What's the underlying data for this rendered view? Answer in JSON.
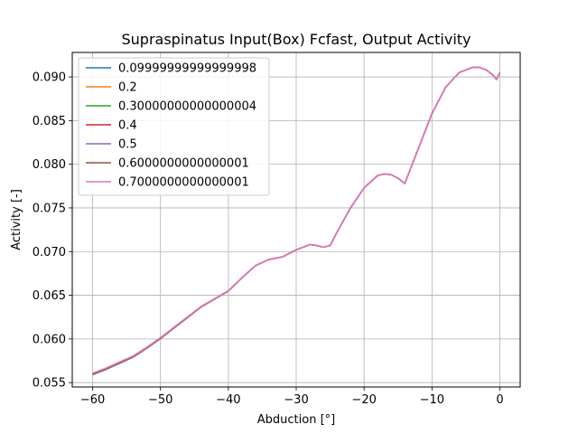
{
  "chart_data": {
    "type": "line",
    "title": "Supraspinatus Input(Box) Fcfast, Output Activity",
    "xlabel": "Abduction [°]",
    "ylabel": "Activity [-]",
    "xlim": [
      -63,
      3
    ],
    "ylim": [
      0.0545,
      0.0928
    ],
    "xticks": [
      -60,
      -50,
      -40,
      -30,
      -20,
      -10,
      0
    ],
    "xtick_labels": [
      "−60",
      "−50",
      "−40",
      "−30",
      "−20",
      "−10",
      "0"
    ],
    "yticks": [
      0.055,
      0.06,
      0.065,
      0.07,
      0.075,
      0.08,
      0.085,
      0.09
    ],
    "ytick_labels": [
      "0.055",
      "0.060",
      "0.065",
      "0.070",
      "0.075",
      "0.080",
      "0.085",
      "0.090"
    ],
    "grid": true,
    "legend_position": "top-left",
    "x": [
      -60,
      -58,
      -56,
      -54,
      -52,
      -50,
      -48,
      -46,
      -44,
      -42,
      -40,
      -38,
      -36,
      -34,
      -32,
      -30,
      -28,
      -27,
      -26,
      -25,
      -24,
      -22,
      -20,
      -18,
      -17,
      -16,
      -15,
      -14,
      -12,
      -10,
      -8,
      -6,
      -4,
      -3,
      -2,
      -1,
      -0.5,
      0
    ],
    "series": [
      {
        "name": "0.09999999999999998",
        "color": "#1f77b4",
        "offset": -0.0001
      },
      {
        "name": "0.2",
        "color": "#ff7f0e",
        "offset": -7e-05
      },
      {
        "name": "0.30000000000000004",
        "color": "#2ca02c",
        "offset": -4e-05
      },
      {
        "name": "0.4",
        "color": "#d62728",
        "offset": 0.0
      },
      {
        "name": "0.5",
        "color": "#9467bd",
        "offset": 3e-05
      },
      {
        "name": "0.6000000000000001",
        "color": "#8c564b",
        "offset": 6e-05
      },
      {
        "name": "0.7000000000000001",
        "color": "#e377c2",
        "offset": 9e-05
      }
    ],
    "base_values": [
      0.056,
      0.0566,
      0.0573,
      0.058,
      0.059,
      0.0601,
      0.0613,
      0.0625,
      0.0637,
      0.0646,
      0.0655,
      0.067,
      0.0684,
      0.0691,
      0.0694,
      0.0702,
      0.0708,
      0.0707,
      0.0705,
      0.0707,
      0.0722,
      0.075,
      0.0773,
      0.0787,
      0.0789,
      0.0788,
      0.0784,
      0.0778,
      0.0818,
      0.0858,
      0.0888,
      0.0905,
      0.0911,
      0.0911,
      0.0908,
      0.0902,
      0.0897,
      0.0905
    ]
  }
}
